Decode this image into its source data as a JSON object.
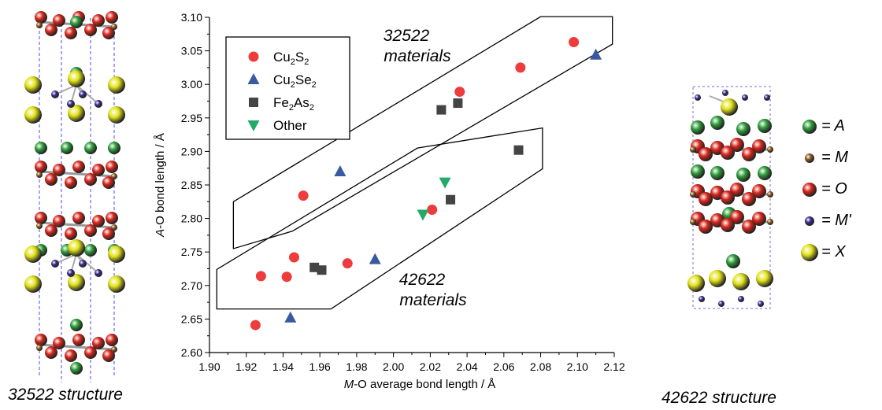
{
  "left_structure_caption": "32522 structure",
  "right_structure_caption": "42622 structure",
  "atom_legend": [
    {
      "icon": "green-sphere",
      "color": "#2e9e3a",
      "label": "= A"
    },
    {
      "icon": "brown-sphere",
      "color": "#8a5a22",
      "label": "= M"
    },
    {
      "icon": "red-sphere",
      "color": "#d9261c",
      "label": "= O"
    },
    {
      "icon": "purple-sphere",
      "color": "#3a2a8c",
      "label": "= M'"
    },
    {
      "icon": "yellow-sphere",
      "color": "#e2e21a",
      "label": "= X"
    }
  ],
  "chart_data": {
    "type": "scatter",
    "xlabel_italic": "M",
    "xlabel_rest": "-O average bond length / Å",
    "ylabel_italic": "A",
    "ylabel_rest": "-O bond length / Å",
    "xlim": [
      1.9,
      2.12
    ],
    "ylim": [
      2.6,
      3.1
    ],
    "x_ticks": [
      "1.90",
      "1.92",
      "1.94",
      "1.96",
      "1.98",
      "2.00",
      "2.02",
      "2.04",
      "2.06",
      "2.08",
      "2.10",
      "2.12"
    ],
    "y_ticks": [
      "2.60",
      "2.65",
      "2.70",
      "2.75",
      "2.80",
      "2.85",
      "2.90",
      "2.95",
      "3.00",
      "3.05",
      "3.10"
    ],
    "grid": false,
    "legend_position": "top-left",
    "series": [
      {
        "name_base": "Cu",
        "name_sub1": "2",
        "name_mid": "S",
        "name_sub2": "2",
        "marker": "circle",
        "color": "#ee3b3b",
        "points": [
          [
            1.925,
            2.641
          ],
          [
            1.928,
            2.714
          ],
          [
            1.942,
            2.713
          ],
          [
            1.946,
            2.742
          ],
          [
            1.951,
            2.834
          ],
          [
            1.975,
            2.733
          ],
          [
            2.021,
            2.813
          ],
          [
            2.036,
            2.989
          ],
          [
            2.069,
            3.025
          ],
          [
            2.098,
            3.063
          ]
        ]
      },
      {
        "name_base": "Cu",
        "name_sub1": "2",
        "name_mid": "Se",
        "name_sub2": "2",
        "marker": "triangle-up",
        "color": "#3a5aa0",
        "points": [
          [
            1.944,
            2.652
          ],
          [
            1.971,
            2.87
          ],
          [
            1.99,
            2.739
          ],
          [
            2.11,
            3.044
          ]
        ]
      },
      {
        "name_base": "Fe",
        "name_sub1": "2",
        "name_mid": "As",
        "name_sub2": "2",
        "marker": "square",
        "color": "#444444",
        "points": [
          [
            1.957,
            2.727
          ],
          [
            1.961,
            2.723
          ],
          [
            2.026,
            2.962
          ],
          [
            2.031,
            2.828
          ],
          [
            2.035,
            2.972
          ],
          [
            2.068,
            2.902
          ]
        ]
      },
      {
        "name_base": "Other",
        "name_sub1": "",
        "name_mid": "",
        "name_sub2": "",
        "marker": "triangle-down",
        "color": "#22aa66",
        "points": [
          [
            2.016,
            2.806
          ],
          [
            2.028,
            2.854
          ]
        ]
      }
    ],
    "regions": [
      {
        "label_line1": "32522",
        "label_line2": "materials",
        "polygon": [
          [
            1.913,
            2.755
          ],
          [
            1.913,
            2.825
          ],
          [
            2.08,
            3.101
          ],
          [
            2.119,
            3.101
          ],
          [
            2.119,
            3.06
          ],
          [
            1.945,
            2.781
          ]
        ]
      },
      {
        "label_line1": "42622",
        "label_line2": "materials",
        "polygon": [
          [
            1.904,
            2.665
          ],
          [
            1.904,
            2.724
          ],
          [
            2.013,
            2.905
          ],
          [
            2.081,
            2.935
          ],
          [
            2.081,
            2.874
          ],
          [
            1.966,
            2.665
          ]
        ]
      }
    ]
  }
}
